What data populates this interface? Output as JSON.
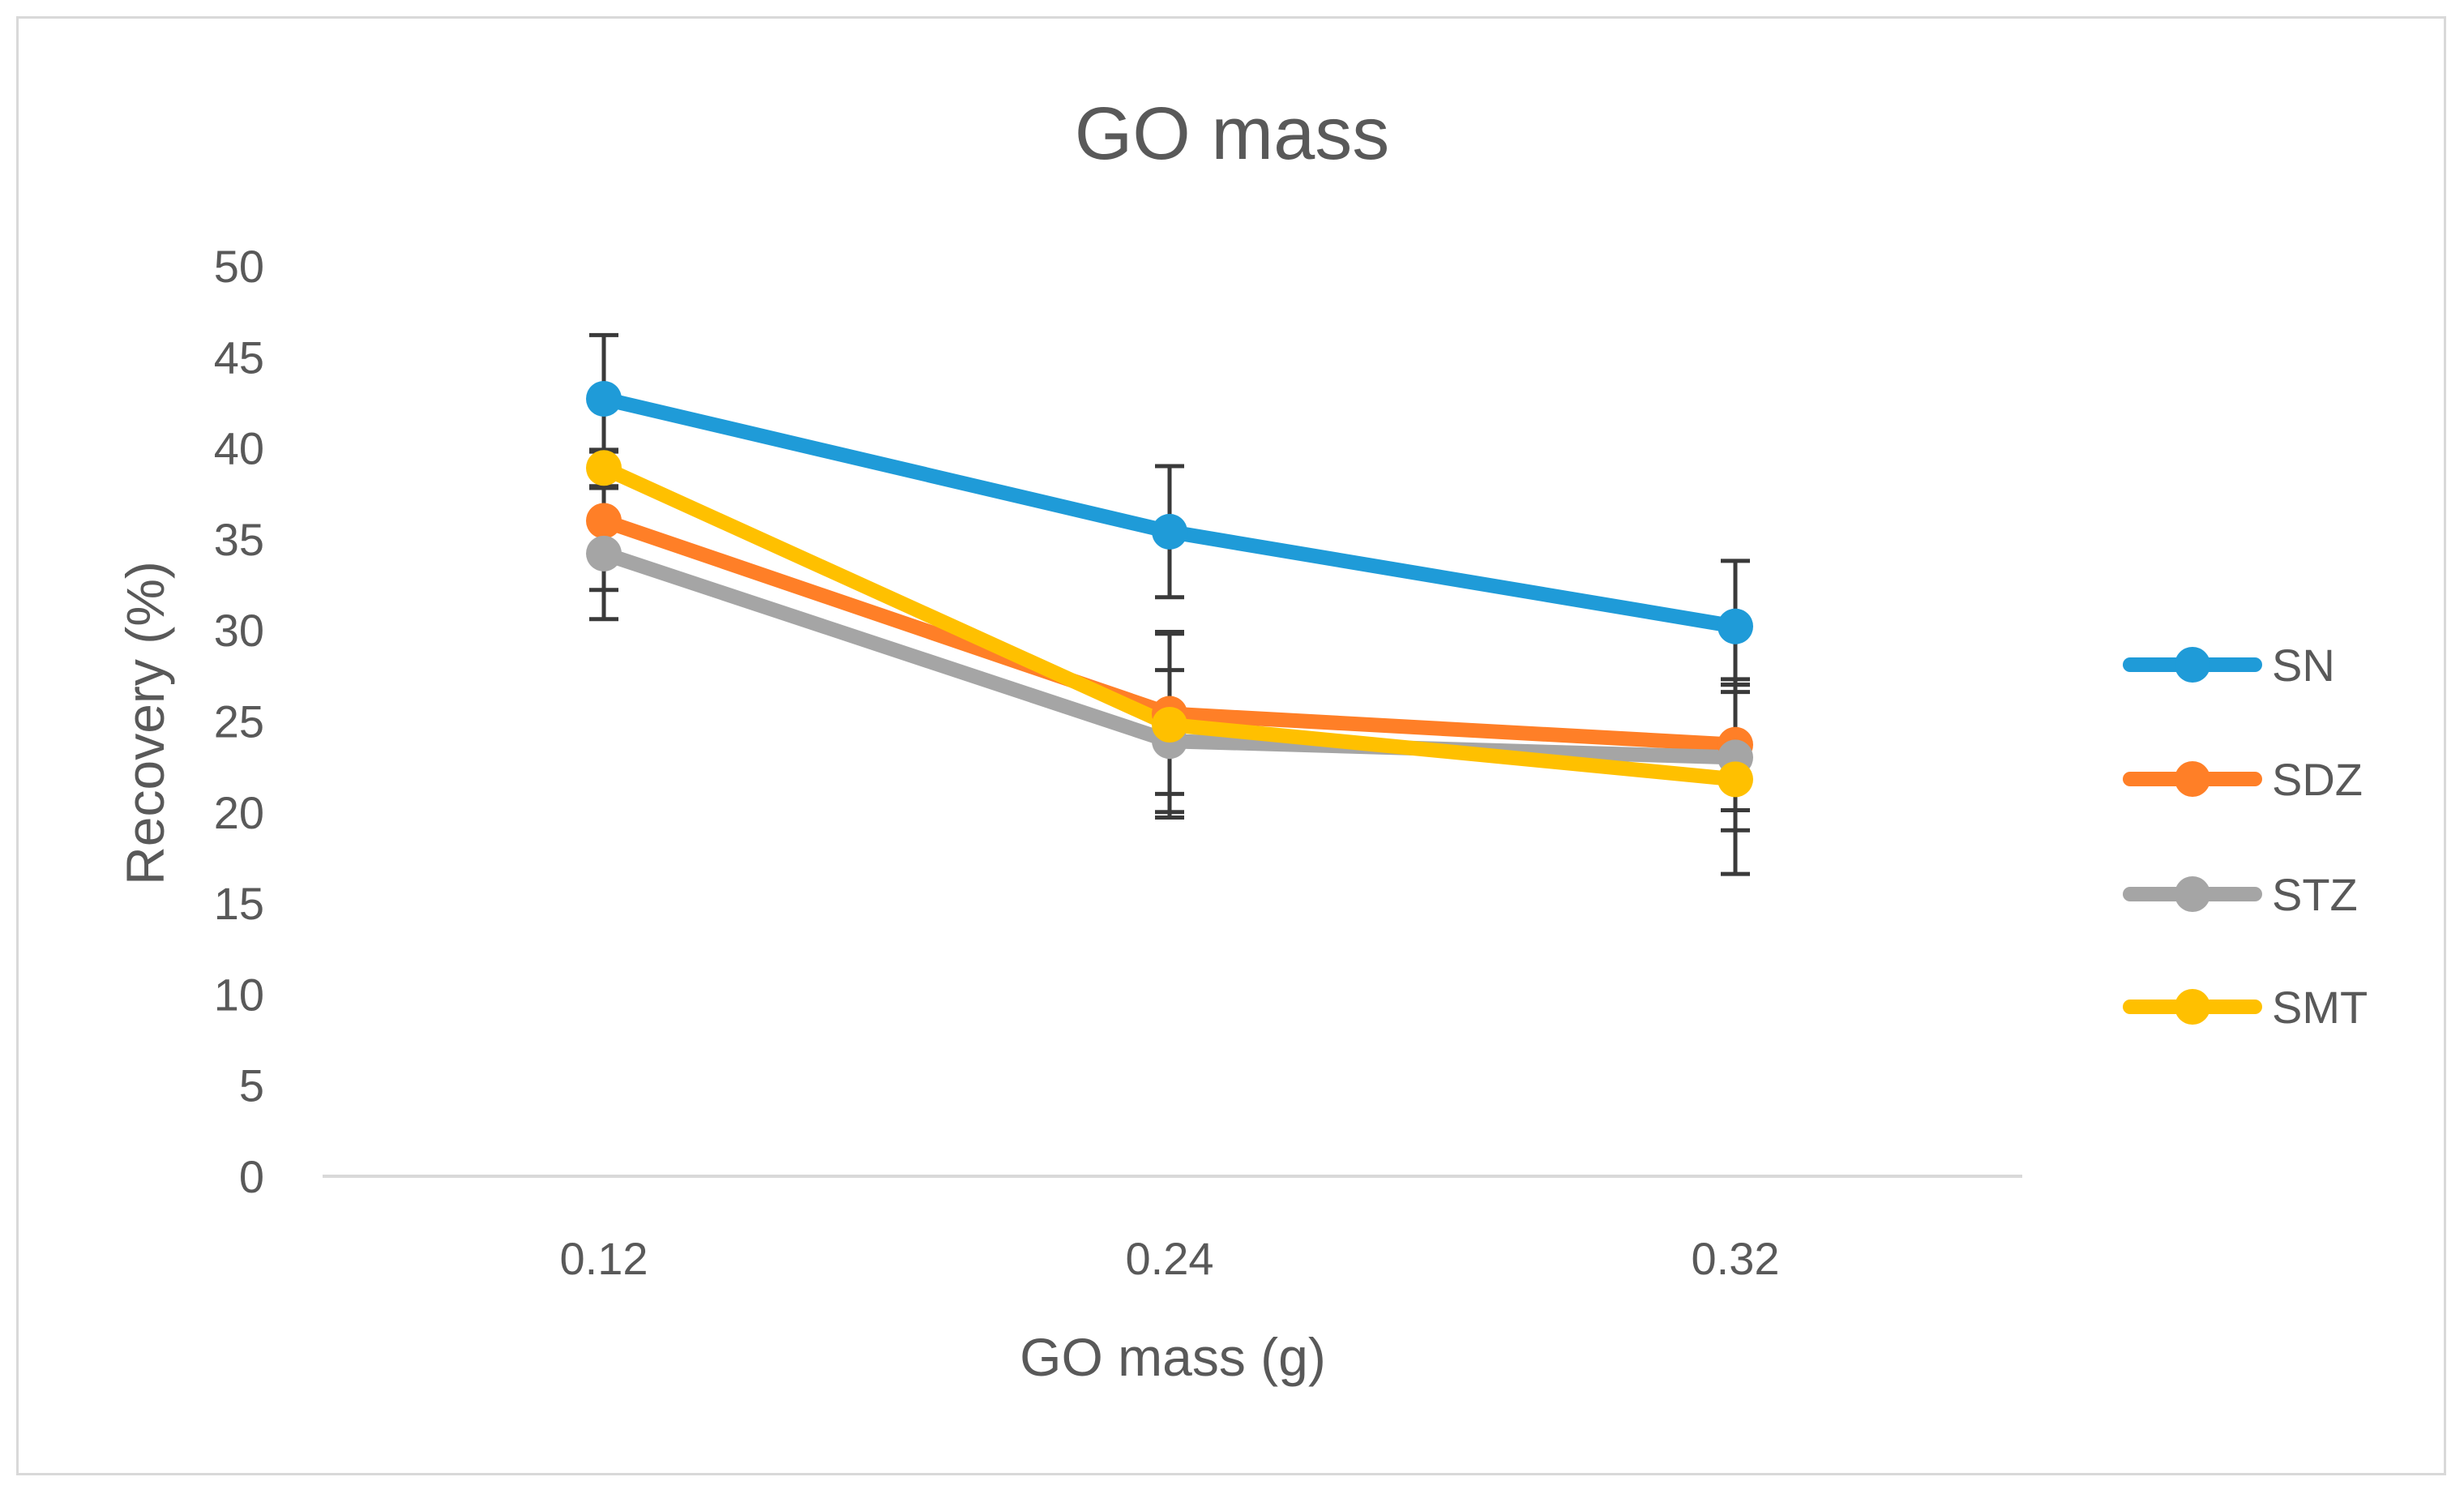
{
  "chart_data": {
    "type": "line",
    "title": "GO mass",
    "xlabel": "GO mass (g)",
    "ylabel": "Recovery (%)",
    "categories": [
      "0.12",
      "0.24",
      "0.32"
    ],
    "ylim": [
      0,
      50
    ],
    "yticks": [
      "0",
      "5",
      "10",
      "15",
      "20",
      "25",
      "30",
      "35",
      "40",
      "45",
      "50"
    ],
    "grid": false,
    "legend_position": "right",
    "series": [
      {
        "name": "SN",
        "color": "#1f9bd8",
        "values": [
          42.7,
          35.4,
          30.2
        ],
        "errors": [
          3.5,
          3.6,
          3.6
        ]
      },
      {
        "name": "SDZ",
        "color": "#ff7f27",
        "values": [
          36.0,
          25.4,
          23.7
        ],
        "errors": [
          3.8,
          4.4,
          3.6
        ]
      },
      {
        "name": "STZ",
        "color": "#a5a5a5",
        "values": [
          34.2,
          23.9,
          23.0
        ],
        "errors": [
          3.6,
          3.9,
          4.0
        ]
      },
      {
        "name": "SMT",
        "color": "#ffc000",
        "values": [
          38.9,
          24.8,
          21.8
        ],
        "errors": [
          1.0,
          5.1,
          5.2
        ]
      }
    ],
    "error_bar_color": "#3a3a3a"
  }
}
